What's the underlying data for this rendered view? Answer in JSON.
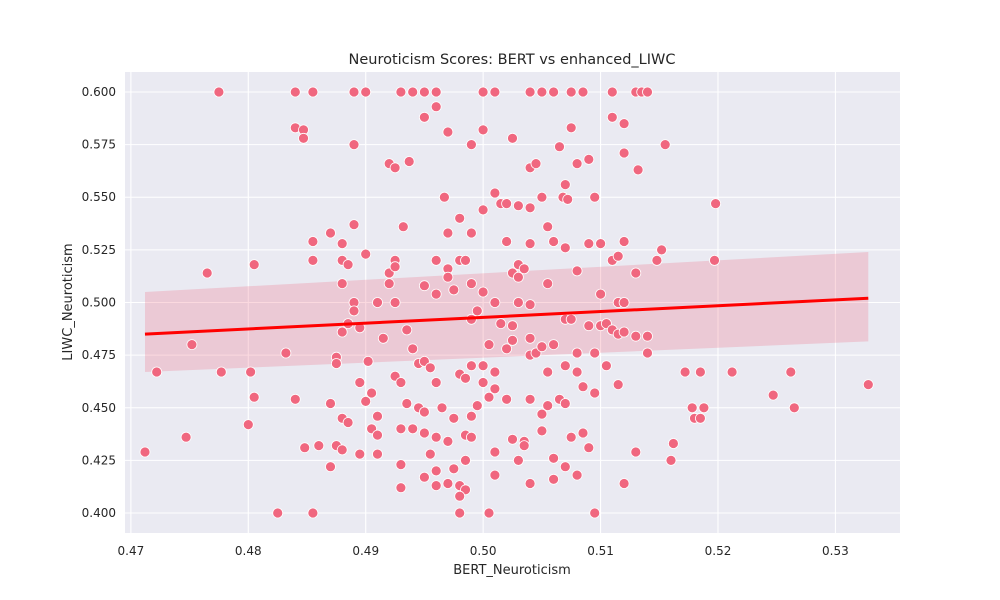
{
  "chart_data": {
    "type": "scatter",
    "title": "Neuroticism Scores: BERT vs enhanced_LIWC",
    "xlabel": "BERT_Neuroticism",
    "ylabel": "LIWC_Neuroticism",
    "xlim": [
      0.4695,
      0.5355
    ],
    "ylim": [
      0.3905,
      0.6095
    ],
    "xticks": [
      0.47,
      0.48,
      0.49,
      0.5,
      0.51,
      0.52,
      0.53
    ],
    "xtick_labels": [
      "0.47",
      "0.48",
      "0.49",
      "0.50",
      "0.51",
      "0.52",
      "0.53"
    ],
    "yticks": [
      0.4,
      0.425,
      0.45,
      0.475,
      0.5,
      0.525,
      0.55,
      0.575,
      0.6
    ],
    "ytick_labels": [
      "0.400",
      "0.425",
      "0.450",
      "0.475",
      "0.500",
      "0.525",
      "0.550",
      "0.575",
      "0.600"
    ],
    "grid": true,
    "style": {
      "background": "#eaeaf2",
      "grid_color": "#ffffff",
      "point_color": "#f0677f",
      "point_edge": "#ffffff",
      "line_color": "#ff0000",
      "ci_color": "#f0677f"
    },
    "regression": {
      "x": [
        0.4712,
        0.5328
      ],
      "y": [
        0.485,
        0.502
      ],
      "ci_lower": [
        0.467,
        0.4815
      ],
      "ci_upper": [
        0.505,
        0.524
      ]
    },
    "points": [
      [
        0.4775,
        0.6
      ],
      [
        0.484,
        0.6
      ],
      [
        0.4855,
        0.6
      ],
      [
        0.489,
        0.6
      ],
      [
        0.49,
        0.6
      ],
      [
        0.493,
        0.6
      ],
      [
        0.494,
        0.6
      ],
      [
        0.495,
        0.6
      ],
      [
        0.496,
        0.6
      ],
      [
        0.5,
        0.6
      ],
      [
        0.501,
        0.6
      ],
      [
        0.504,
        0.6
      ],
      [
        0.505,
        0.6
      ],
      [
        0.506,
        0.6
      ],
      [
        0.5075,
        0.6
      ],
      [
        0.5085,
        0.6
      ],
      [
        0.511,
        0.6
      ],
      [
        0.513,
        0.6
      ],
      [
        0.5135,
        0.6
      ],
      [
        0.514,
        0.6
      ],
      [
        0.484,
        0.583
      ],
      [
        0.4847,
        0.582
      ],
      [
        0.4847,
        0.578
      ],
      [
        0.489,
        0.575
      ],
      [
        0.4937,
        0.567
      ],
      [
        0.492,
        0.566
      ],
      [
        0.4925,
        0.564
      ],
      [
        0.495,
        0.588
      ],
      [
        0.496,
        0.593
      ],
      [
        0.497,
        0.581
      ],
      [
        0.499,
        0.575
      ],
      [
        0.5,
        0.582
      ],
      [
        0.5025,
        0.578
      ],
      [
        0.504,
        0.564
      ],
      [
        0.5045,
        0.566
      ],
      [
        0.5065,
        0.574
      ],
      [
        0.5075,
        0.583
      ],
      [
        0.509,
        0.568
      ],
      [
        0.511,
        0.588
      ],
      [
        0.512,
        0.585
      ],
      [
        0.512,
        0.571
      ],
      [
        0.5132,
        0.563
      ],
      [
        0.5155,
        0.575
      ],
      [
        0.508,
        0.566
      ],
      [
        0.4967,
        0.55
      ],
      [
        0.498,
        0.54
      ],
      [
        0.499,
        0.533
      ],
      [
        0.5,
        0.544
      ],
      [
        0.501,
        0.552
      ],
      [
        0.5015,
        0.547
      ],
      [
        0.502,
        0.547
      ],
      [
        0.503,
        0.546
      ],
      [
        0.504,
        0.545
      ],
      [
        0.505,
        0.55
      ],
      [
        0.5055,
        0.536
      ],
      [
        0.5068,
        0.55
      ],
      [
        0.507,
        0.556
      ],
      [
        0.5072,
        0.549
      ],
      [
        0.5095,
        0.55
      ],
      [
        0.487,
        0.533
      ],
      [
        0.4855,
        0.529
      ],
      [
        0.488,
        0.528
      ],
      [
        0.489,
        0.537
      ],
      [
        0.4932,
        0.536
      ],
      [
        0.497,
        0.533
      ],
      [
        0.502,
        0.529
      ],
      [
        0.504,
        0.528
      ],
      [
        0.506,
        0.529
      ],
      [
        0.507,
        0.526
      ],
      [
        0.509,
        0.528
      ],
      [
        0.51,
        0.528
      ],
      [
        0.512,
        0.529
      ],
      [
        0.5152,
        0.525
      ],
      [
        0.5198,
        0.547
      ],
      [
        0.4765,
        0.514
      ],
      [
        0.4805,
        0.518
      ],
      [
        0.4855,
        0.52
      ],
      [
        0.488,
        0.52
      ],
      [
        0.4885,
        0.518
      ],
      [
        0.49,
        0.523
      ],
      [
        0.492,
        0.514
      ],
      [
        0.4925,
        0.52
      ],
      [
        0.4925,
        0.517
      ],
      [
        0.496,
        0.52
      ],
      [
        0.497,
        0.516
      ],
      [
        0.498,
        0.52
      ],
      [
        0.4985,
        0.52
      ],
      [
        0.497,
        0.512
      ],
      [
        0.495,
        0.508
      ],
      [
        0.492,
        0.509
      ],
      [
        0.488,
        0.509
      ],
      [
        0.4975,
        0.506
      ],
      [
        0.499,
        0.509
      ],
      [
        0.5025,
        0.514
      ],
      [
        0.503,
        0.518
      ],
      [
        0.5035,
        0.516
      ],
      [
        0.503,
        0.512
      ],
      [
        0.5055,
        0.509
      ],
      [
        0.508,
        0.515
      ],
      [
        0.511,
        0.52
      ],
      [
        0.5115,
        0.522
      ],
      [
        0.513,
        0.514
      ],
      [
        0.5148,
        0.52
      ],
      [
        0.5197,
        0.52
      ],
      [
        0.489,
        0.5
      ],
      [
        0.491,
        0.5
      ],
      [
        0.4925,
        0.5
      ],
      [
        0.496,
        0.504
      ],
      [
        0.5,
        0.505
      ],
      [
        0.501,
        0.5
      ],
      [
        0.503,
        0.5
      ],
      [
        0.504,
        0.499
      ],
      [
        0.51,
        0.504
      ],
      [
        0.5115,
        0.5
      ],
      [
        0.512,
        0.5
      ],
      [
        0.488,
        0.486
      ],
      [
        0.4885,
        0.49
      ],
      [
        0.489,
        0.496
      ],
      [
        0.4895,
        0.488
      ],
      [
        0.4915,
        0.483
      ],
      [
        0.4935,
        0.487
      ],
      [
        0.499,
        0.492
      ],
      [
        0.4995,
        0.496
      ],
      [
        0.5015,
        0.49
      ],
      [
        0.5025,
        0.489
      ],
      [
        0.504,
        0.483
      ],
      [
        0.506,
        0.48
      ],
      [
        0.507,
        0.492
      ],
      [
        0.5075,
        0.492
      ],
      [
        0.509,
        0.489
      ],
      [
        0.51,
        0.489
      ],
      [
        0.5105,
        0.49
      ],
      [
        0.511,
        0.487
      ],
      [
        0.5115,
        0.485
      ],
      [
        0.512,
        0.486
      ],
      [
        0.513,
        0.484
      ],
      [
        0.514,
        0.484
      ],
      [
        0.508,
        0.476
      ],
      [
        0.4752,
        0.48
      ],
      [
        0.4832,
        0.476
      ],
      [
        0.4875,
        0.474
      ],
      [
        0.4875,
        0.471
      ],
      [
        0.4895,
        0.462
      ],
      [
        0.4902,
        0.472
      ],
      [
        0.494,
        0.478
      ],
      [
        0.4945,
        0.471
      ],
      [
        0.495,
        0.472
      ],
      [
        0.4955,
        0.469
      ],
      [
        0.496,
        0.462
      ],
      [
        0.498,
        0.466
      ],
      [
        0.4985,
        0.464
      ],
      [
        0.499,
        0.47
      ],
      [
        0.5,
        0.47
      ],
      [
        0.5005,
        0.48
      ],
      [
        0.501,
        0.467
      ],
      [
        0.502,
        0.478
      ],
      [
        0.5025,
        0.482
      ],
      [
        0.504,
        0.475
      ],
      [
        0.5045,
        0.476
      ],
      [
        0.505,
        0.479
      ],
      [
        0.5055,
        0.467
      ],
      [
        0.507,
        0.47
      ],
      [
        0.508,
        0.467
      ],
      [
        0.5095,
        0.476
      ],
      [
        0.5105,
        0.47
      ],
      [
        0.514,
        0.476
      ],
      [
        0.4722,
        0.467
      ],
      [
        0.4777,
        0.467
      ],
      [
        0.4802,
        0.467
      ],
      [
        0.4925,
        0.465
      ],
      [
        0.493,
        0.462
      ],
      [
        0.5,
        0.462
      ],
      [
        0.5172,
        0.467
      ],
      [
        0.5185,
        0.467
      ],
      [
        0.5212,
        0.467
      ],
      [
        0.5262,
        0.467
      ],
      [
        0.4805,
        0.455
      ],
      [
        0.484,
        0.454
      ],
      [
        0.487,
        0.452
      ],
      [
        0.49,
        0.453
      ],
      [
        0.4905,
        0.457
      ],
      [
        0.491,
        0.446
      ],
      [
        0.4935,
        0.452
      ],
      [
        0.4945,
        0.45
      ],
      [
        0.495,
        0.448
      ],
      [
        0.4965,
        0.45
      ],
      [
        0.4975,
        0.445
      ],
      [
        0.4995,
        0.451
      ],
      [
        0.499,
        0.446
      ],
      [
        0.501,
        0.459
      ],
      [
        0.5005,
        0.455
      ],
      [
        0.502,
        0.454
      ],
      [
        0.504,
        0.454
      ],
      [
        0.5055,
        0.451
      ],
      [
        0.505,
        0.447
      ],
      [
        0.5065,
        0.454
      ],
      [
        0.507,
        0.452
      ],
      [
        0.5085,
        0.46
      ],
      [
        0.5095,
        0.457
      ],
      [
        0.5115,
        0.461
      ],
      [
        0.5178,
        0.45
      ],
      [
        0.5188,
        0.45
      ],
      [
        0.518,
        0.445
      ],
      [
        0.5185,
        0.445
      ],
      [
        0.5247,
        0.456
      ],
      [
        0.5265,
        0.45
      ],
      [
        0.5328,
        0.461
      ],
      [
        0.4747,
        0.436
      ],
      [
        0.48,
        0.442
      ],
      [
        0.488,
        0.445
      ],
      [
        0.4885,
        0.443
      ],
      [
        0.4905,
        0.44
      ],
      [
        0.491,
        0.437
      ],
      [
        0.493,
        0.44
      ],
      [
        0.494,
        0.44
      ],
      [
        0.495,
        0.438
      ],
      [
        0.496,
        0.436
      ],
      [
        0.497,
        0.434
      ],
      [
        0.4985,
        0.437
      ],
      [
        0.499,
        0.436
      ],
      [
        0.5025,
        0.435
      ],
      [
        0.5035,
        0.434
      ],
      [
        0.5035,
        0.432
      ],
      [
        0.505,
        0.439
      ],
      [
        0.5075,
        0.436
      ],
      [
        0.5085,
        0.438
      ],
      [
        0.509,
        0.431
      ],
      [
        0.513,
        0.429
      ],
      [
        0.5162,
        0.433
      ],
      [
        0.4712,
        0.429
      ],
      [
        0.4848,
        0.431
      ],
      [
        0.486,
        0.432
      ],
      [
        0.4875,
        0.432
      ],
      [
        0.488,
        0.43
      ],
      [
        0.4895,
        0.428
      ],
      [
        0.491,
        0.428
      ],
      [
        0.493,
        0.423
      ],
      [
        0.4955,
        0.428
      ],
      [
        0.4985,
        0.425
      ],
      [
        0.501,
        0.429
      ],
      [
        0.503,
        0.425
      ],
      [
        0.506,
        0.426
      ],
      [
        0.507,
        0.422
      ],
      [
        0.508,
        0.418
      ],
      [
        0.487,
        0.422
      ],
      [
        0.496,
        0.42
      ],
      [
        0.4975,
        0.421
      ],
      [
        0.501,
        0.418
      ],
      [
        0.504,
        0.414
      ],
      [
        0.506,
        0.416
      ],
      [
        0.512,
        0.414
      ],
      [
        0.516,
        0.425
      ],
      [
        0.497,
        0.414
      ],
      [
        0.498,
        0.413
      ],
      [
        0.495,
        0.417
      ],
      [
        0.4985,
        0.411
      ],
      [
        0.498,
        0.408
      ],
      [
        0.4825,
        0.4
      ],
      [
        0.4855,
        0.4
      ],
      [
        0.498,
        0.4
      ],
      [
        0.5005,
        0.4
      ],
      [
        0.5095,
        0.4
      ],
      [
        0.496,
        0.413
      ],
      [
        0.493,
        0.412
      ]
    ]
  }
}
